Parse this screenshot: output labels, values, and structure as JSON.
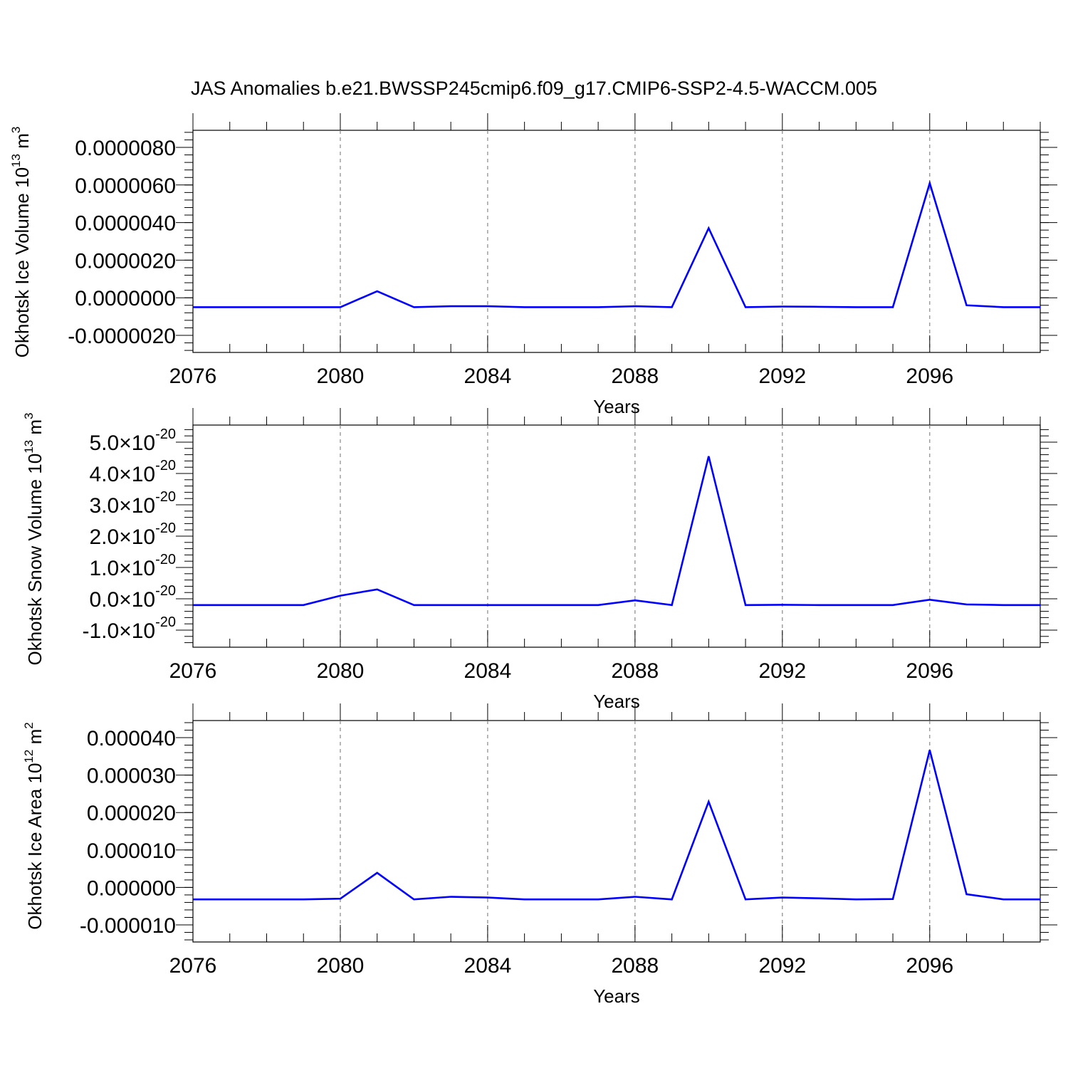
{
  "title": "JAS Anomalies b.e21.BWSSP245cmip6.f09_g17.CMIP6-SSP2-4.5-WACCM.005",
  "line_color": "#0000ff",
  "chart_data": [
    {
      "type": "line",
      "ylabel": "Okhotsk Ice Volume 10",
      "ylabel_sup": "13",
      "ylabel_unit": "m",
      "ylabel_unit_sup": "3",
      "xlabel": "Years",
      "xlim": [
        2076,
        2099
      ],
      "ylim": [
        -2e-06,
        8e-06
      ],
      "xticks": [
        2076,
        2080,
        2084,
        2088,
        2092,
        2096
      ],
      "xtick_labels": [
        "2076",
        "2080",
        "2084",
        "2088",
        "2092",
        "2096"
      ],
      "yticks": [
        -2e-06,
        0.0,
        2e-06,
        4e-06,
        6e-06,
        8e-06
      ],
      "ytick_labels": [
        "-0.0000020",
        "0.0000000",
        "0.0000020",
        "0.0000040",
        "0.0000060",
        "0.0000080"
      ],
      "grid": "vertical dashed at major x ticks",
      "series": [
        {
          "x": [
            2076,
            2077,
            2078,
            2079,
            2080,
            2081,
            2082,
            2083,
            2084,
            2085,
            2086,
            2087,
            2088,
            2089,
            2090,
            2091,
            2092,
            2093,
            2094,
            2095,
            2096,
            2097,
            2098,
            2099
          ],
          "values": [
            -5e-07,
            -5e-07,
            -5e-07,
            -5e-07,
            -5e-07,
            3.5e-07,
            -5e-07,
            -4.5e-07,
            -4.5e-07,
            -5e-07,
            -5e-07,
            -5e-07,
            -4.5e-07,
            -5e-07,
            3.7e-06,
            -5e-07,
            -4.7e-07,
            -4.8e-07,
            -5e-07,
            -5e-07,
            6.1e-06,
            -4e-07,
            -5e-07,
            -5e-07
          ]
        }
      ]
    },
    {
      "type": "line",
      "ylabel": "Okhotsk Snow Volume 10",
      "ylabel_sup": "13",
      "ylabel_unit": "m",
      "ylabel_unit_sup": "3",
      "xlabel": "Years",
      "xlim": [
        2076,
        2099
      ],
      "ylim": [
        -1e-20,
        5e-20
      ],
      "xticks": [
        2076,
        2080,
        2084,
        2088,
        2092,
        2096
      ],
      "xtick_labels": [
        "2076",
        "2080",
        "2084",
        "2088",
        "2092",
        "2096"
      ],
      "yticks": [
        -1e-20,
        0.0,
        1e-20,
        2e-20,
        3e-20,
        4e-20,
        5e-20
      ],
      "ytick_mantissas": [
        "-1.0",
        "0.0",
        "1.0",
        "2.0",
        "3.0",
        "4.0",
        "5.0"
      ],
      "ytick_base": "10",
      "ytick_exponent": "-20",
      "grid": "vertical dashed at major x ticks",
      "series": [
        {
          "x": [
            2076,
            2077,
            2078,
            2079,
            2080,
            2081,
            2082,
            2083,
            2084,
            2085,
            2086,
            2087,
            2088,
            2089,
            2090,
            2091,
            2092,
            2093,
            2094,
            2095,
            2096,
            2097,
            2098,
            2099
          ],
          "values": [
            -2e-21,
            -2e-21,
            -2e-21,
            -2e-21,
            1e-21,
            3e-21,
            -2e-21,
            -2e-21,
            -2e-21,
            -2e-21,
            -2e-21,
            -2e-21,
            -5e-22,
            -2e-21,
            4.55e-20,
            -2e-21,
            -1.9e-21,
            -2e-21,
            -2e-21,
            -2e-21,
            -3e-22,
            -1.8e-21,
            -2e-21,
            -2e-21
          ]
        }
      ]
    },
    {
      "type": "line",
      "ylabel": "Okhotsk Ice Area 10",
      "ylabel_sup": "12",
      "ylabel_unit": "m",
      "ylabel_unit_sup": "2",
      "xlabel": "Years",
      "xlim": [
        2076,
        2099
      ],
      "ylim": [
        -1e-05,
        4e-05
      ],
      "xticks": [
        2076,
        2080,
        2084,
        2088,
        2092,
        2096
      ],
      "xtick_labels": [
        "2076",
        "2080",
        "2084",
        "2088",
        "2092",
        "2096"
      ],
      "yticks": [
        -1e-05,
        0.0,
        1e-05,
        2e-05,
        3e-05,
        4e-05
      ],
      "ytick_labels": [
        "-0.000010",
        "0.000000",
        "0.000010",
        "0.000020",
        "0.000030",
        "0.000040"
      ],
      "grid": "vertical dashed at major x ticks",
      "series": [
        {
          "x": [
            2076,
            2077,
            2078,
            2079,
            2080,
            2081,
            2082,
            2083,
            2084,
            2085,
            2086,
            2087,
            2088,
            2089,
            2090,
            2091,
            2092,
            2093,
            2094,
            2095,
            2096,
            2097,
            2098,
            2099
          ],
          "values": [
            -3.2e-06,
            -3.2e-06,
            -3.2e-06,
            -3.2e-06,
            -3e-06,
            3.9e-06,
            -3.2e-06,
            -2.5e-06,
            -2.7e-06,
            -3.2e-06,
            -3.2e-06,
            -3.2e-06,
            -2.5e-06,
            -3.2e-06,
            2.29e-05,
            -3.2e-06,
            -2.7e-06,
            -2.9e-06,
            -3.2e-06,
            -3.1e-06,
            3.67e-05,
            -1.8e-06,
            -3.2e-06,
            -3.2e-06
          ]
        }
      ]
    }
  ]
}
